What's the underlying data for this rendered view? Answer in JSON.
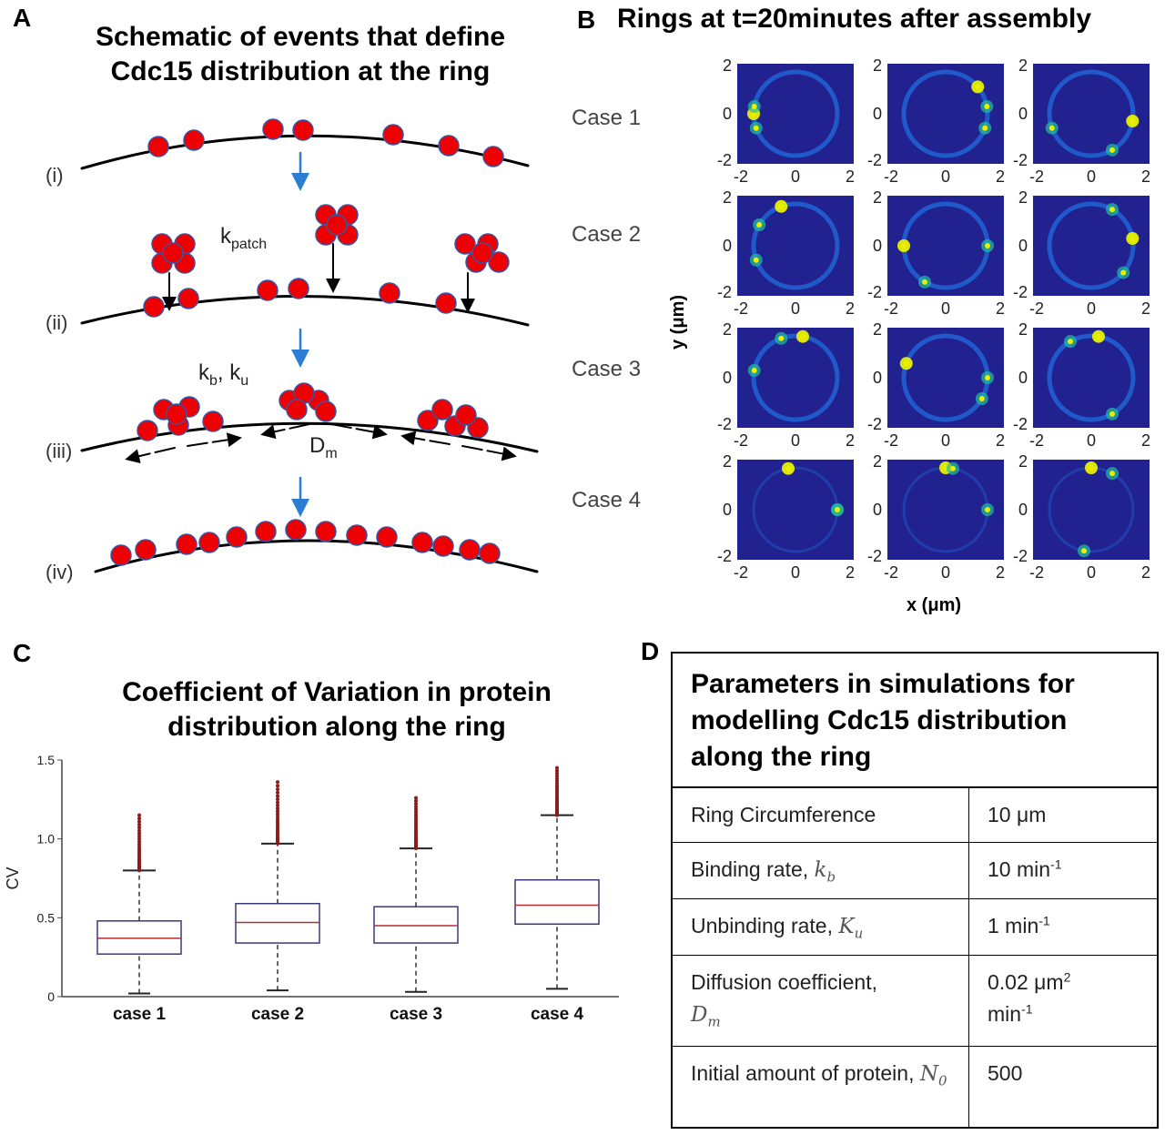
{
  "panelA": {
    "letter": "A",
    "title_line1": "Schematic of events that define",
    "title_line2": "Cdc15 distribution at the ring",
    "stages": [
      "(i)",
      "(ii)",
      "(iii)",
      "(iv)"
    ],
    "k_patch_label": "k",
    "k_patch_sub": "patch",
    "kb_ku_label": "k",
    "kb_sub": "b",
    "ku_sep": ", k",
    "ku_sub": "u",
    "dm_label": "D",
    "dm_sub": "m"
  },
  "panelB": {
    "letter": "B",
    "title": "Rings at t=20minutes after assembly",
    "cases": [
      "Case 1",
      "Case 2",
      "Case 3",
      "Case 4"
    ],
    "ylabel": "y (μm)",
    "xlabel": "x (μm)",
    "tick_labels": [
      "-2",
      "0",
      "2"
    ],
    "colors": {
      "background": "#21228f",
      "ring": "#1f5fd0",
      "hot": "#e8f000"
    }
  },
  "panelC": {
    "letter": "C",
    "title_line1": "Coefficient of Variation in protein",
    "title_line2": "distribution along the ring"
  },
  "chart_data": {
    "type": "box",
    "title": "Coefficient of Variation in protein distribution along the ring",
    "ylabel": "CV",
    "ylim": [
      0,
      1.5
    ],
    "yticks": [
      "0",
      "0.5",
      "1.0",
      "1.5"
    ],
    "categories": [
      "case 1",
      "case 2",
      "case 3",
      "case 4"
    ],
    "boxes": [
      {
        "category": "case 1",
        "whisker_low": 0.02,
        "q1": 0.27,
        "median": 0.37,
        "q3": 0.48,
        "whisker_high": 0.8,
        "outlier_max": 1.15
      },
      {
        "category": "case 2",
        "whisker_low": 0.04,
        "q1": 0.34,
        "median": 0.47,
        "q3": 0.59,
        "whisker_high": 0.97,
        "outlier_max": 1.36
      },
      {
        "category": "case 3",
        "whisker_low": 0.03,
        "q1": 0.34,
        "median": 0.45,
        "q3": 0.57,
        "whisker_high": 0.94,
        "outlier_max": 1.26
      },
      {
        "category": "case 4",
        "whisker_low": 0.05,
        "q1": 0.46,
        "median": 0.58,
        "q3": 0.74,
        "whisker_high": 1.15,
        "outlier_max": 1.45
      }
    ],
    "colors": {
      "box": "#3a3a7a",
      "median": "#b03030",
      "outlier": "#8b1a1a"
    }
  },
  "panelD": {
    "letter": "D",
    "header": [
      "Parameters in simulations for",
      "modelling Cdc15 distribution",
      "along the ring"
    ],
    "rows": [
      {
        "name": "Ring Circumference",
        "symbol": "",
        "value": "10 μm",
        "value_sup": "",
        "value_tail": ""
      },
      {
        "name": "Binding rate, ",
        "symbol": "k",
        "symbol_sub": "b",
        "value": "10 min",
        "value_sup": "-1",
        "value_tail": ""
      },
      {
        "name": "Unbinding rate, ",
        "symbol": "K",
        "symbol_sub": "u",
        "value": "1 min",
        "value_sup": "-1",
        "value_tail": ""
      },
      {
        "name": "Diffusion coefficient,",
        "symbol": "D",
        "symbol_sub": "m",
        "value": "0.02 μm",
        "value_sup": "2",
        "value_tail": "min",
        "value_tail_sup": "-1"
      },
      {
        "name": "Initial amount of protein, ",
        "symbol": "N",
        "symbol_sub": "0",
        "value": "500",
        "value_sup": "",
        "value_tail": ""
      }
    ]
  }
}
